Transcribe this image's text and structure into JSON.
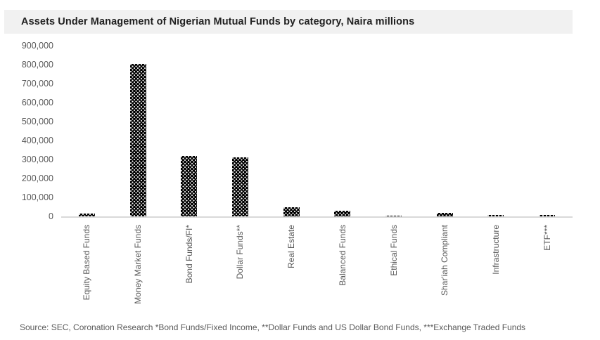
{
  "chart": {
    "title": "Assets Under Management of Nigerian Mutual Funds by category, Naira millions"
  },
  "source_note": "Source: SEC, Coronation Research *Bond Funds/Fixed Income, **Dollar Funds and US Dollar Bond Funds, ***Exchange Traded Funds",
  "chart_data": {
    "type": "bar",
    "title": "Assets Under Management of Nigerian Mutual Funds by category, Naira millions",
    "categories": [
      "Equity Based Funds",
      "Money Market Funds",
      "Bond Funds/FI*",
      "Dollar Funds**",
      "Real Estate",
      "Balanced Funds",
      "Ethical Funds",
      "Shar'iah Compliant",
      "Infrastructure",
      "ETF***"
    ],
    "values": [
      15000,
      805000,
      320000,
      310000,
      48000,
      28000,
      3000,
      20000,
      8000,
      8000
    ],
    "xlabel": "",
    "ylabel": "",
    "ylim": [
      0,
      900000
    ],
    "ytick_interval": 100000,
    "ytick_labels": [
      "0",
      "100,000",
      "200,000",
      "300,000",
      "400,000",
      "500,000",
      "600,000",
      "700,000",
      "800,000",
      "900,000"
    ],
    "grid": false,
    "legend": false,
    "x_label_rotation": "vertical-bottom-to-top",
    "bar_style": {
      "fill": "#000000",
      "pattern": "white-dots-checkerboard",
      "dot_color": "#ffffff"
    }
  },
  "colors": {
    "background": "#ffffff",
    "title_band_bg": "#f1f1f1",
    "title_text": "#212121",
    "axis_text": "#595959",
    "axis_line": "#d9d9d9",
    "bar_fill": "#000000"
  }
}
